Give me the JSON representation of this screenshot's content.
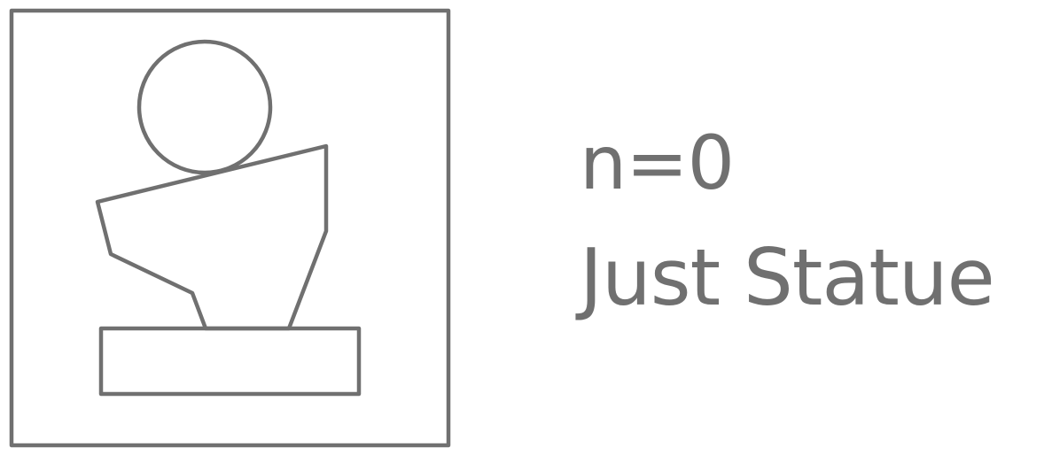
{
  "colors": {
    "stroke": "#707070",
    "text": "#707070",
    "background": "#ffffff"
  },
  "icon": {
    "name": "statue-icon"
  },
  "labels": {
    "count": "n=0",
    "title": "Just Statue"
  }
}
